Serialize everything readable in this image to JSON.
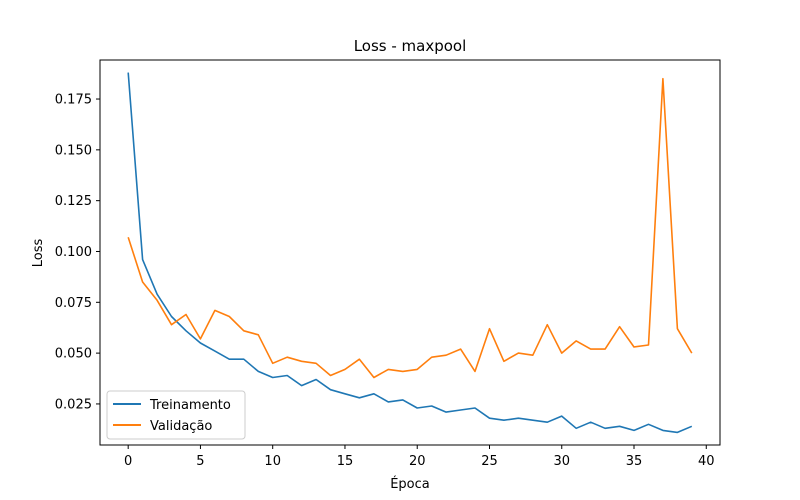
{
  "chart_data": {
    "type": "line",
    "title": "Loss - maxpool",
    "xlabel": "Época",
    "ylabel": "Loss",
    "xlim": [
      -1.95,
      40.95
    ],
    "ylim": [
      0.0048,
      0.1942
    ],
    "xticks": [
      0,
      5,
      10,
      15,
      20,
      25,
      30,
      35,
      40
    ],
    "xtick_labels": [
      "0",
      "5",
      "10",
      "15",
      "20",
      "25",
      "30",
      "35",
      "40"
    ],
    "yticks": [
      0.025,
      0.05,
      0.075,
      0.1,
      0.125,
      0.15,
      0.175
    ],
    "ytick_labels": [
      "0.025",
      "0.050",
      "0.075",
      "0.100",
      "0.125",
      "0.150",
      "0.175"
    ],
    "grid": false,
    "legend_position": "lower-left",
    "x": [
      0,
      1,
      2,
      3,
      4,
      5,
      6,
      7,
      8,
      9,
      10,
      11,
      12,
      13,
      14,
      15,
      16,
      17,
      18,
      19,
      20,
      21,
      22,
      23,
      24,
      25,
      26,
      27,
      28,
      29,
      30,
      31,
      32,
      33,
      34,
      35,
      36,
      37,
      38,
      39
    ],
    "series": [
      {
        "name": "Treinamento",
        "color": "#1f77b4",
        "values": [
          0.188,
          0.096,
          0.079,
          0.068,
          0.061,
          0.055,
          0.051,
          0.047,
          0.047,
          0.041,
          0.038,
          0.039,
          0.034,
          0.037,
          0.032,
          0.03,
          0.028,
          0.03,
          0.026,
          0.027,
          0.023,
          0.024,
          0.021,
          0.022,
          0.023,
          0.018,
          0.017,
          0.018,
          0.017,
          0.016,
          0.019,
          0.013,
          0.016,
          0.013,
          0.014,
          0.012,
          0.015,
          0.012,
          0.011,
          0.014
        ]
      },
      {
        "name": "Validação",
        "color": "#ff7f0e",
        "values": [
          0.107,
          0.085,
          0.076,
          0.064,
          0.069,
          0.057,
          0.071,
          0.068,
          0.061,
          0.059,
          0.045,
          0.048,
          0.046,
          0.045,
          0.039,
          0.042,
          0.047,
          0.038,
          0.042,
          0.041,
          0.042,
          0.048,
          0.049,
          0.052,
          0.041,
          0.062,
          0.046,
          0.05,
          0.049,
          0.064,
          0.05,
          0.056,
          0.052,
          0.052,
          0.063,
          0.053,
          0.054,
          0.185,
          0.062,
          0.05
        ]
      }
    ]
  }
}
